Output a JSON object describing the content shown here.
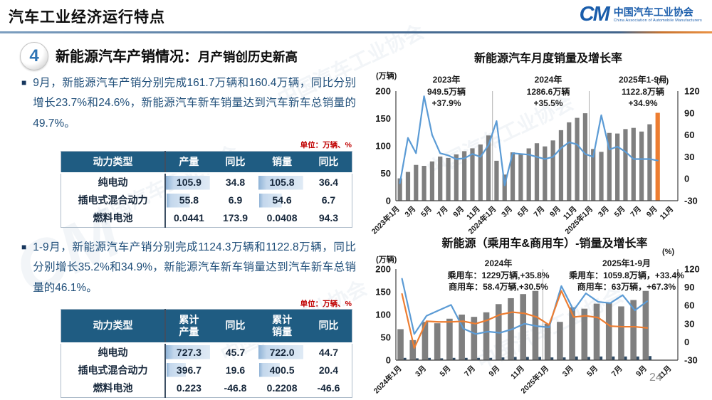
{
  "header": {
    "title": "汽车工业经济运行特点",
    "logo": {
      "glyph": "CM",
      "name_cn": "中国汽车工业协会",
      "name_en": "China Association of Automobile Manufacturers"
    }
  },
  "watermark": "中国汽车工业协会",
  "section": {
    "number": "4",
    "title_main": "新能源汽车产销情况：",
    "title_sub": "月产销创历史新高"
  },
  "bullets": [
    {
      "text": "9月，新能源汽车产销分别完成161.7万辆和160.4万辆，同比分别增长23.7%和24.6%，新能源汽车新车销量达到汽车新车总销量的49.7%。"
    },
    {
      "text": "1-9月，新能源汽车产销分别完成1124.3万辆和1122.8万辆，同比分别增长35.2%和34.9%，新能源汽车新车销量达到汽车新车总销量的46.1%。"
    }
  ],
  "unit_label": "单位：万辆、%",
  "tables": [
    {
      "headers": [
        "动力类型",
        "产量",
        "同比",
        "销量",
        "同比"
      ],
      "rows": [
        {
          "label": "纯电动",
          "cells": [
            {
              "v": "105.9",
              "fill": 95
            },
            {
              "v": "34.8"
            },
            {
              "v": "105.8",
              "fill": 95
            },
            {
              "v": "36.4"
            }
          ]
        },
        {
          "label": "插电式混合动力",
          "cells": [
            {
              "v": "55.8",
              "fill": 50
            },
            {
              "v": "6.9"
            },
            {
              "v": "54.6",
              "fill": 48
            },
            {
              "v": "6.7"
            }
          ]
        },
        {
          "label": "燃料电池",
          "cells": [
            {
              "v": "0.0441"
            },
            {
              "v": "173.9"
            },
            {
              "v": "0.0408"
            },
            {
              "v": "94.3"
            }
          ]
        }
      ]
    },
    {
      "headers": [
        "动力类型",
        "累计\n产量",
        "同比",
        "累计\n销量",
        "同比"
      ],
      "rows": [
        {
          "label": "纯电动",
          "cells": [
            {
              "v": "727.3",
              "fill": 96
            },
            {
              "v": "45.7"
            },
            {
              "v": "722.0",
              "fill": 96
            },
            {
              "v": "44.7"
            }
          ]
        },
        {
          "label": "插电式混合动力",
          "cells": [
            {
              "v": "396.7",
              "fill": 42
            },
            {
              "v": "19.6"
            },
            {
              "v": "400.5",
              "fill": 44
            },
            {
              "v": "20.4"
            }
          ]
        },
        {
          "label": "燃料电池",
          "cells": [
            {
              "v": "0.223"
            },
            {
              "v": "-46.8"
            },
            {
              "v": "0.2208"
            },
            {
              "v": "-46.6"
            }
          ]
        }
      ]
    }
  ],
  "page_number": "24",
  "chart_data": [
    {
      "type": "bar",
      "title": "新能源汽车月度销量及增长率",
      "unit_left": "(万辆)",
      "unit_right": "(%)",
      "x_start": "2023年1月",
      "x_freq": "monthly",
      "x_tick_labels": [
        "2023年1月",
        "3月",
        "5月",
        "7月",
        "9月",
        "11月",
        "2024年1月",
        "3月",
        "5月",
        "7月",
        "9月",
        "11月",
        "2025年1月",
        "3月",
        "5月",
        "7月",
        "9月",
        "11月"
      ],
      "slots": 35,
      "separators": [
        12,
        24
      ],
      "bars": {
        "name": "月度销量(万辆)",
        "color": "#7f7f7f",
        "last_color": "#ED7D31",
        "values": [
          40.8,
          52.5,
          65.3,
          63.6,
          71.7,
          80.6,
          78.0,
          84.6,
          90.4,
          95.6,
          102.6,
          119.1,
          72.9,
          47.7,
          88.3,
          85.0,
          95.5,
          104.9,
          99.1,
          110.0,
          128.7,
          143.0,
          151.2,
          159.6,
          94.4,
          89.2,
          123.7,
          122.6,
          130.7,
          132.9,
          126.2,
          139.5,
          160.4
        ]
      },
      "line": {
        "name": "增长率(%)",
        "color": "#5B9BD5",
        "values": [
          -6,
          56,
          35,
          113,
          60,
          35,
          32,
          27,
          28,
          34,
          30,
          46,
          79,
          -9,
          35,
          34,
          33,
          30,
          27,
          30,
          42,
          50,
          47,
          34,
          30,
          87,
          40,
          44,
          37,
          27,
          27,
          27,
          25
        ]
      },
      "ylim_left": [
        0,
        200
      ],
      "yticks_left": [
        0,
        50,
        100,
        150,
        200
      ],
      "ylim_right": [
        -30,
        120
      ],
      "yticks_right": [
        -30,
        0,
        30,
        60,
        90,
        120
      ],
      "annotations": [
        {
          "line1": "2023年",
          "line2": "949.5万辆",
          "line3": "+37.9%"
        },
        {
          "line1": "2024年",
          "line2": "1286.6万辆",
          "line3": "+35.5%"
        },
        {
          "line1": "2025年1-9月",
          "line2": "1122.8万辆",
          "line3": "+34.9%"
        }
      ],
      "grid": false,
      "legend": "none"
    },
    {
      "type": "bar",
      "title": "新能源（乘用车&商用车）-销量及增长率",
      "unit_left": "(万辆)",
      "unit_right": "(%)",
      "x_start": "2024年1月",
      "x_freq": "monthly",
      "x_tick_labels": [
        "2024年1月",
        "3月",
        "5月",
        "7月",
        "9月",
        "11月",
        "2025年1月",
        "3月",
        "5月",
        "7月",
        "9月",
        "11月"
      ],
      "slots": 23,
      "separators": [
        12
      ],
      "bar_series": [
        {
          "name": "乘用车销量(万辆)",
          "color": "#7f7f7f",
          "values": [
            68,
            44,
            84,
            81,
            91,
            100,
            95,
            105,
            123,
            136,
            145,
            152,
            80,
            84,
            116,
            113,
            124,
            125,
            118,
            132,
            152
          ]
        },
        {
          "name": "商用车销量(万辆)",
          "color": "#2f4b66",
          "values": [
            5,
            4,
            5,
            4,
            5,
            5,
            5,
            5,
            6,
            7,
            7,
            7,
            6,
            6,
            8,
            7,
            8,
            8,
            8,
            8,
            9
          ]
        }
      ],
      "line_series": [
        {
          "name": "乘用车增长率(%)",
          "color": "#5B9BD5",
          "values": [
            104,
            13,
            43,
            52,
            61,
            22,
            13,
            17,
            15,
            21,
            30,
            26,
            24,
            92,
            52,
            80,
            66,
            64,
            77,
            52,
            67
          ]
        },
        {
          "name": "商用车增长率(%)",
          "color": "#ED7D31",
          "values": [
            79,
            -10,
            34,
            33,
            33,
            34,
            30,
            36,
            45,
            49,
            47,
            41,
            28,
            84,
            41,
            43,
            40,
            26,
            25,
            25,
            23
          ]
        }
      ],
      "ylim_left": [
        0,
        200
      ],
      "yticks_left": [
        0,
        50,
        100,
        150,
        200
      ],
      "ylim_right": [
        -30,
        120
      ],
      "yticks_right": [
        -30,
        0,
        30,
        60,
        90,
        120
      ],
      "annotations": [
        {
          "line1": "2024年",
          "line2": "乘用车：1229万辆,+35.8%",
          "line3": "商用车：58.4万辆,+30.5%"
        },
        {
          "line1": "2025年1-9月",
          "line2": "乘用车：1059.8万辆，+33.4%",
          "line3": "商用车：63万辆，+67.3%"
        }
      ],
      "grid": false,
      "legend": "none"
    }
  ]
}
